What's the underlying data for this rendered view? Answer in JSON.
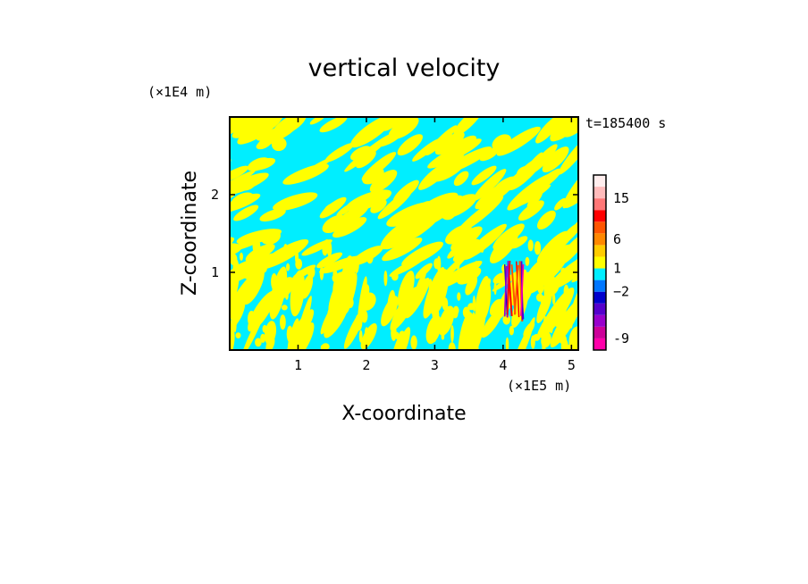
{
  "chart_data": {
    "type": "heatmap",
    "title": "vertical velocity",
    "xlabel": "X-coordinate",
    "ylabel": "Z-coordinate",
    "x_unit": "(×1E5 m)",
    "y_unit": "(×1E4 m)",
    "time_label": "t=185400 s",
    "xlim": [
      0,
      5.1
    ],
    "ylim": [
      0,
      3.0
    ],
    "x_ticks": [
      {
        "value": 1,
        "label": "1"
      },
      {
        "value": 2,
        "label": "2"
      },
      {
        "value": 3,
        "label": "3"
      },
      {
        "value": 4,
        "label": "4"
      },
      {
        "value": 5,
        "label": "5"
      }
    ],
    "y_ticks": [
      {
        "value": 1,
        "label": "1"
      },
      {
        "value": 2,
        "label": "2"
      }
    ],
    "colorbar": {
      "levels": [
        {
          "color": "#ff00aa"
        },
        {
          "color": "#cc0099"
        },
        {
          "color": "#9900cc"
        },
        {
          "color": "#5500cc"
        },
        {
          "color": "#0000cc"
        },
        {
          "color": "#0077ff"
        },
        {
          "color": "#00eeff"
        },
        {
          "color": "#ffff00"
        },
        {
          "color": "#ffcc00"
        },
        {
          "color": "#ff8800"
        },
        {
          "color": "#ff5500"
        },
        {
          "color": "#ff0000"
        },
        {
          "color": "#ff7777"
        },
        {
          "color": "#ffbbbb"
        },
        {
          "color": "#ffeeee"
        }
      ],
      "tick_labels": [
        {
          "level": 1,
          "label": "-9"
        },
        {
          "level": 5,
          "label": "−2"
        },
        {
          "level": 7,
          "label": "1"
        },
        {
          "level": 9.5,
          "label": "6"
        },
        {
          "level": 13,
          "label": "15"
        }
      ]
    },
    "field_colors": {
      "positive": "#ffff00",
      "negative": "#00eeff"
    },
    "grid": false
  }
}
